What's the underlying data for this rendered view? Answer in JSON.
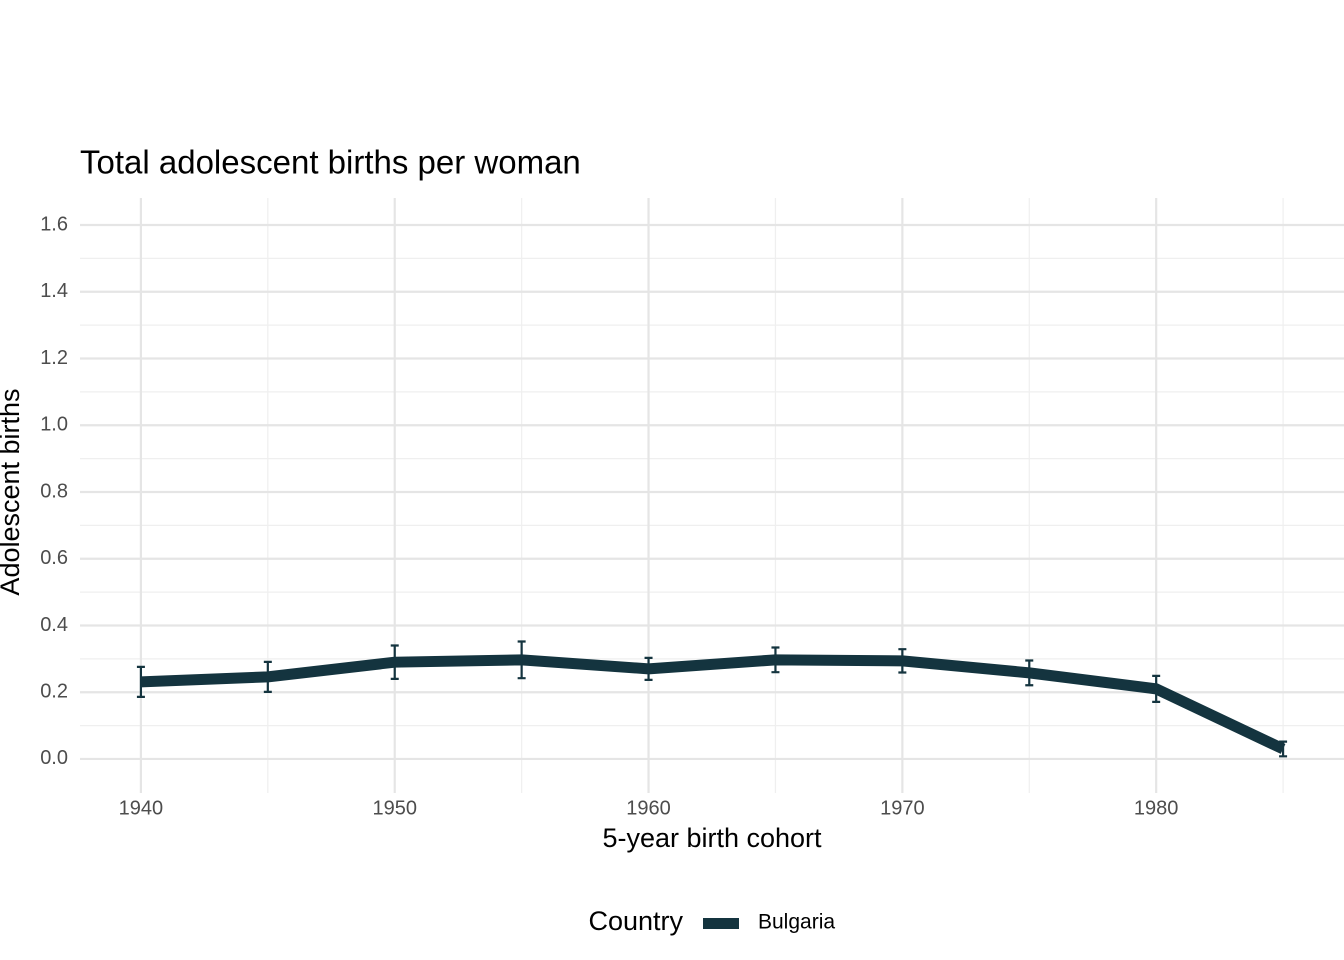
{
  "chart_data": {
    "type": "line",
    "title": "Total adolescent births per woman",
    "x_label": "5-year birth cohort",
    "y_label": "Adolescent births",
    "legend_title": "Country",
    "legend_position": "bottom",
    "grid": true,
    "x": [
      1940,
      1945,
      1950,
      1955,
      1960,
      1965,
      1970,
      1975,
      1980,
      1985
    ],
    "series": [
      {
        "name": "Bulgaria",
        "color": "#14343f",
        "values": [
          0.231,
          0.246,
          0.29,
          0.297,
          0.27,
          0.297,
          0.294,
          0.258,
          0.21,
          0.03
        ],
        "errors": [
          0.045,
          0.045,
          0.05,
          0.055,
          0.033,
          0.037,
          0.035,
          0.037,
          0.039,
          0.022
        ]
      }
    ],
    "xlim": [
      1937.6,
      1987.4
    ],
    "xticks": [
      1940,
      1950,
      1960,
      1970,
      1980
    ],
    "ylim": [
      -0.102,
      1.681
    ],
    "yticks": [
      {
        "value": 0,
        "label": "0.0"
      },
      {
        "value": 0.2,
        "label": "0.2"
      },
      {
        "value": 0.4,
        "label": "0.4"
      },
      {
        "value": 0.6,
        "label": "0.6"
      },
      {
        "value": 0.8,
        "label": "0.8"
      },
      {
        "value": 1,
        "label": "1.0"
      },
      {
        "value": 1.2,
        "label": "1.2"
      },
      {
        "value": 1.4,
        "label": "1.4"
      },
      {
        "value": 1.6,
        "label": "1.6"
      }
    ]
  }
}
